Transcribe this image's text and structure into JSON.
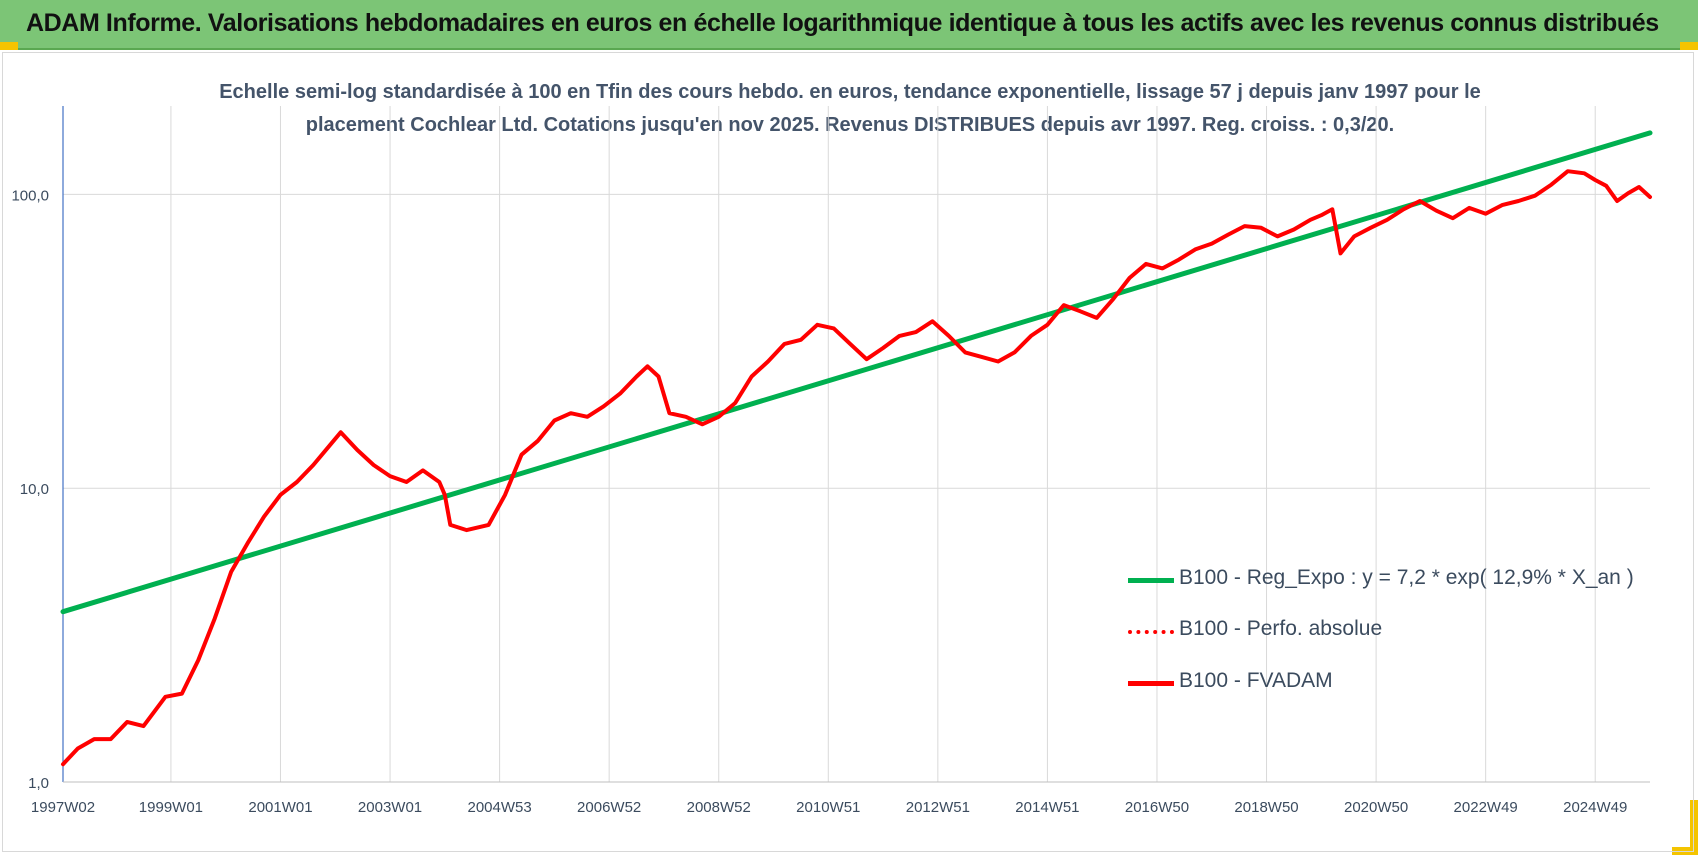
{
  "header": {
    "title": "ADAM Informe. Valorisations hebdomadaires en euros en échelle logarithmique identique à tous les actifs avec les revenus connus distribués"
  },
  "subtitle": {
    "line1": "Echelle semi-log standardisée à 100 en Tfin des cours hebdo. en euros, tendance exponentielle, lissage 57 j depuis janv 1997 pour le",
    "line2": "placement Cochlear Ltd. Cotations jusqu'en nov 2025. Revenus DISTRIBUES depuis avr 1997. Reg. croiss. : 0,3/20."
  },
  "colors": {
    "header_bg": "#7cc576",
    "accent_corner": "#f4c400",
    "regression": "#00b050",
    "fvadam": "#ff0000",
    "perfo": "#ff0000",
    "grid": "#d9d9d9",
    "axis_text": "#3b4b5e"
  },
  "chart_data": {
    "type": "line",
    "yscale": "log",
    "ylim": [
      1,
      200
    ],
    "y_ticks": [
      "1,0",
      "10,0",
      "100,0"
    ],
    "y_tick_values": [
      1,
      10,
      100
    ],
    "xlim": [
      1997.03,
      2026.0
    ],
    "x_tick_labels": [
      "1997W02",
      "1999W01",
      "2001W01",
      "2003W01",
      "2004W53",
      "2006W52",
      "2008W52",
      "2010W51",
      "2012W51",
      "2014W51",
      "2016W50",
      "2018W50",
      "2020W50",
      "2022W49",
      "2024W49"
    ],
    "x_tick_years": [
      1997.03,
      1999.0,
      2001.0,
      2003.0,
      2005.0,
      2007.0,
      2009.0,
      2011.0,
      2013.0,
      2015.0,
      2017.0,
      2019.0,
      2021.0,
      2023.0,
      2025.0
    ],
    "grid": true,
    "legend_position": "bottom-right",
    "series": [
      {
        "name": "B100 - Reg_Expo : y = 7,2 * exp( 12,9% *  X_an )",
        "style": "solid",
        "points": [
          [
            1997.03,
            3.8
          ],
          [
            2026.0,
            162
          ]
        ]
      },
      {
        "name": "B100 - Perfo. absolue",
        "style": "dotted",
        "points": []
      },
      {
        "name": "B100 - FVADAM",
        "style": "solid",
        "points": [
          [
            1997.03,
            1.15
          ],
          [
            1997.3,
            1.3
          ],
          [
            1997.6,
            1.4
          ],
          [
            1997.9,
            1.4
          ],
          [
            1998.2,
            1.6
          ],
          [
            1998.5,
            1.55
          ],
          [
            1998.9,
            1.95
          ],
          [
            1999.2,
            2.0
          ],
          [
            1999.5,
            2.6
          ],
          [
            1999.8,
            3.6
          ],
          [
            2000.1,
            5.2
          ],
          [
            2000.4,
            6.5
          ],
          [
            2000.7,
            8.0
          ],
          [
            2001.0,
            9.5
          ],
          [
            2001.3,
            10.5
          ],
          [
            2001.6,
            12.0
          ],
          [
            2001.9,
            14.0
          ],
          [
            2002.1,
            15.5
          ],
          [
            2002.4,
            13.5
          ],
          [
            2002.7,
            12.0
          ],
          [
            2003.0,
            11.0
          ],
          [
            2003.3,
            10.5
          ],
          [
            2003.6,
            11.5
          ],
          [
            2003.9,
            10.5
          ],
          [
            2004.0,
            9.5
          ],
          [
            2004.1,
            7.5
          ],
          [
            2004.4,
            7.2
          ],
          [
            2004.8,
            7.5
          ],
          [
            2005.1,
            9.5
          ],
          [
            2005.4,
            13.0
          ],
          [
            2005.7,
            14.5
          ],
          [
            2006.0,
            17.0
          ],
          [
            2006.3,
            18.0
          ],
          [
            2006.6,
            17.5
          ],
          [
            2006.9,
            19.0
          ],
          [
            2007.2,
            21.0
          ],
          [
            2007.5,
            24.0
          ],
          [
            2007.7,
            26.0
          ],
          [
            2007.9,
            24.0
          ],
          [
            2008.1,
            18.0
          ],
          [
            2008.4,
            17.5
          ],
          [
            2008.7,
            16.5
          ],
          [
            2009.0,
            17.5
          ],
          [
            2009.3,
            19.5
          ],
          [
            2009.6,
            24.0
          ],
          [
            2009.9,
            27.0
          ],
          [
            2010.2,
            31.0
          ],
          [
            2010.5,
            32.0
          ],
          [
            2010.8,
            36.0
          ],
          [
            2011.1,
            35.0
          ],
          [
            2011.4,
            31.0
          ],
          [
            2011.7,
            27.5
          ],
          [
            2012.0,
            30.0
          ],
          [
            2012.3,
            33.0
          ],
          [
            2012.6,
            34.0
          ],
          [
            2012.9,
            37.0
          ],
          [
            2013.2,
            33.0
          ],
          [
            2013.5,
            29.0
          ],
          [
            2013.8,
            28.0
          ],
          [
            2014.1,
            27.0
          ],
          [
            2014.4,
            29.0
          ],
          [
            2014.7,
            33.0
          ],
          [
            2015.0,
            36.0
          ],
          [
            2015.3,
            42.0
          ],
          [
            2015.6,
            40.0
          ],
          [
            2015.9,
            38.0
          ],
          [
            2016.2,
            44.0
          ],
          [
            2016.5,
            52.0
          ],
          [
            2016.8,
            58.0
          ],
          [
            2017.1,
            56.0
          ],
          [
            2017.4,
            60.0
          ],
          [
            2017.7,
            65.0
          ],
          [
            2018.0,
            68.0
          ],
          [
            2018.3,
            73.0
          ],
          [
            2018.6,
            78.0
          ],
          [
            2018.9,
            77.0
          ],
          [
            2019.2,
            72.0
          ],
          [
            2019.5,
            76.0
          ],
          [
            2019.8,
            82.0
          ],
          [
            2020.0,
            85.0
          ],
          [
            2020.2,
            89.0
          ],
          [
            2020.35,
            63.0
          ],
          [
            2020.6,
            72.0
          ],
          [
            2020.9,
            77.0
          ],
          [
            2021.2,
            82.0
          ],
          [
            2021.5,
            89.0
          ],
          [
            2021.8,
            95.0
          ],
          [
            2022.1,
            88.0
          ],
          [
            2022.4,
            83.0
          ],
          [
            2022.7,
            90.0
          ],
          [
            2023.0,
            86.0
          ],
          [
            2023.3,
            92.0
          ],
          [
            2023.6,
            95.0
          ],
          [
            2023.9,
            99.0
          ],
          [
            2024.2,
            108.0
          ],
          [
            2024.5,
            120.0
          ],
          [
            2024.8,
            118.0
          ],
          [
            2025.0,
            112.0
          ],
          [
            2025.2,
            107.0
          ],
          [
            2025.4,
            95.0
          ],
          [
            2025.6,
            101.0
          ],
          [
            2025.8,
            106.0
          ],
          [
            2026.0,
            98.0
          ]
        ]
      }
    ]
  }
}
